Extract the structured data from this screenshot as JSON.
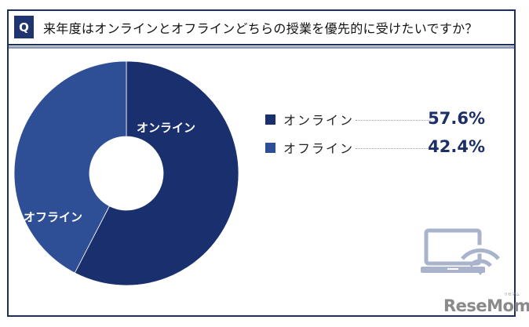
{
  "header": {
    "badge": "Q",
    "title": "来年度はオンラインとオフラインどちらの授業を優先的に受けたいですか？"
  },
  "colors": {
    "frame": "#1c2f55",
    "badge": "#1f3570",
    "online": "#1a2f6e",
    "offline": "#2e4f96",
    "icon": "#a9b3cc",
    "brand": "#8a8a8a"
  },
  "chart_data": {
    "type": "pie",
    "variant": "donut",
    "title": "来年度はオンラインとオフラインどちらの授業を優先的に受けたいですか？",
    "categories": [
      "オンライン",
      "オフライン"
    ],
    "values": [
      57.6,
      42.4
    ],
    "unit": "%",
    "colors": [
      "#1a2f6e",
      "#2e4f96"
    ],
    "start_angle": "12 o'clock, clockwise",
    "legend_position": "right",
    "segment_labels": [
      "オンライン",
      "オフライン"
    ]
  },
  "legend": [
    {
      "label": "オンライン",
      "value": "57.6%",
      "color": "#1a2f6e"
    },
    {
      "label": "オフライン",
      "value": "42.4%",
      "color": "#2e4f96"
    }
  ],
  "segments": [
    {
      "label": "オンライン"
    },
    {
      "label": "オフライン"
    }
  ],
  "decor": {
    "icon": "laptop-wifi-icon",
    "brand": "ReseMom",
    "brand_ruby": "リセマム"
  }
}
